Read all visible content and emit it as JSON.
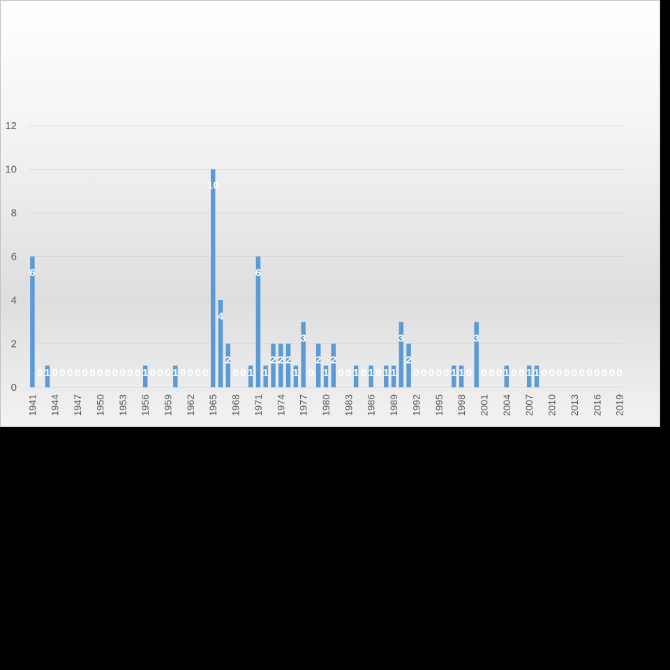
{
  "chart_data": {
    "type": "bar",
    "x": [
      1941,
      1942,
      1943,
      1944,
      1945,
      1946,
      1947,
      1948,
      1949,
      1950,
      1951,
      1952,
      1953,
      1954,
      1955,
      1956,
      1957,
      1958,
      1959,
      1960,
      1961,
      1962,
      1963,
      1964,
      1965,
      1966,
      1967,
      1968,
      1969,
      1970,
      1971,
      1972,
      1973,
      1974,
      1975,
      1976,
      1977,
      1978,
      1979,
      1980,
      1981,
      1982,
      1983,
      1984,
      1985,
      1986,
      1987,
      1988,
      1989,
      1990,
      1991,
      1992,
      1993,
      1994,
      1995,
      1996,
      1997,
      1998,
      1999,
      2000,
      2001,
      2002,
      2003,
      2004,
      2005,
      2006,
      2007,
      2008,
      2009,
      2010,
      2011,
      2012,
      2013,
      2014,
      2015,
      2016,
      2017,
      2018,
      2019
    ],
    "values": [
      6,
      0,
      1,
      0,
      0,
      0,
      0,
      0,
      0,
      0,
      0,
      0,
      0,
      0,
      0,
      1,
      0,
      0,
      0,
      1,
      0,
      0,
      0,
      0,
      10,
      4,
      2,
      0,
      0,
      1,
      6,
      1,
      2,
      2,
      2,
      1,
      3,
      0,
      2,
      1,
      2,
      0,
      0,
      1,
      0,
      1,
      0,
      1,
      1,
      3,
      2,
      0,
      0,
      0,
      0,
      0,
      1,
      1,
      0,
      3,
      0,
      0,
      0,
      1,
      0,
      0,
      1,
      1,
      0,
      0,
      0,
      0,
      0,
      0,
      0,
      0,
      0,
      0,
      0
    ],
    "x_tick_labels": [
      "1941",
      "1944",
      "1947",
      "1950",
      "1953",
      "1956",
      "1959",
      "1962",
      "1965",
      "1968",
      "1971",
      "1974",
      "1977",
      "1980",
      "1983",
      "1986",
      "1989",
      "1992",
      "1995",
      "1998",
      "2001",
      "2004",
      "2007",
      "2010",
      "2013",
      "2016",
      "2019"
    ],
    "y_ticks": [
      "0",
      "2",
      "4",
      "6",
      "8",
      "10",
      "12"
    ],
    "ylim": [
      0,
      12
    ],
    "grid": true,
    "legend": "none",
    "title": "",
    "xlabel": "",
    "ylabel": "",
    "colors": {
      "bar": "#5b9bd5",
      "grid": "#d9d9d9",
      "axis_text": "#595959",
      "data_label": "#ffffff"
    }
  }
}
